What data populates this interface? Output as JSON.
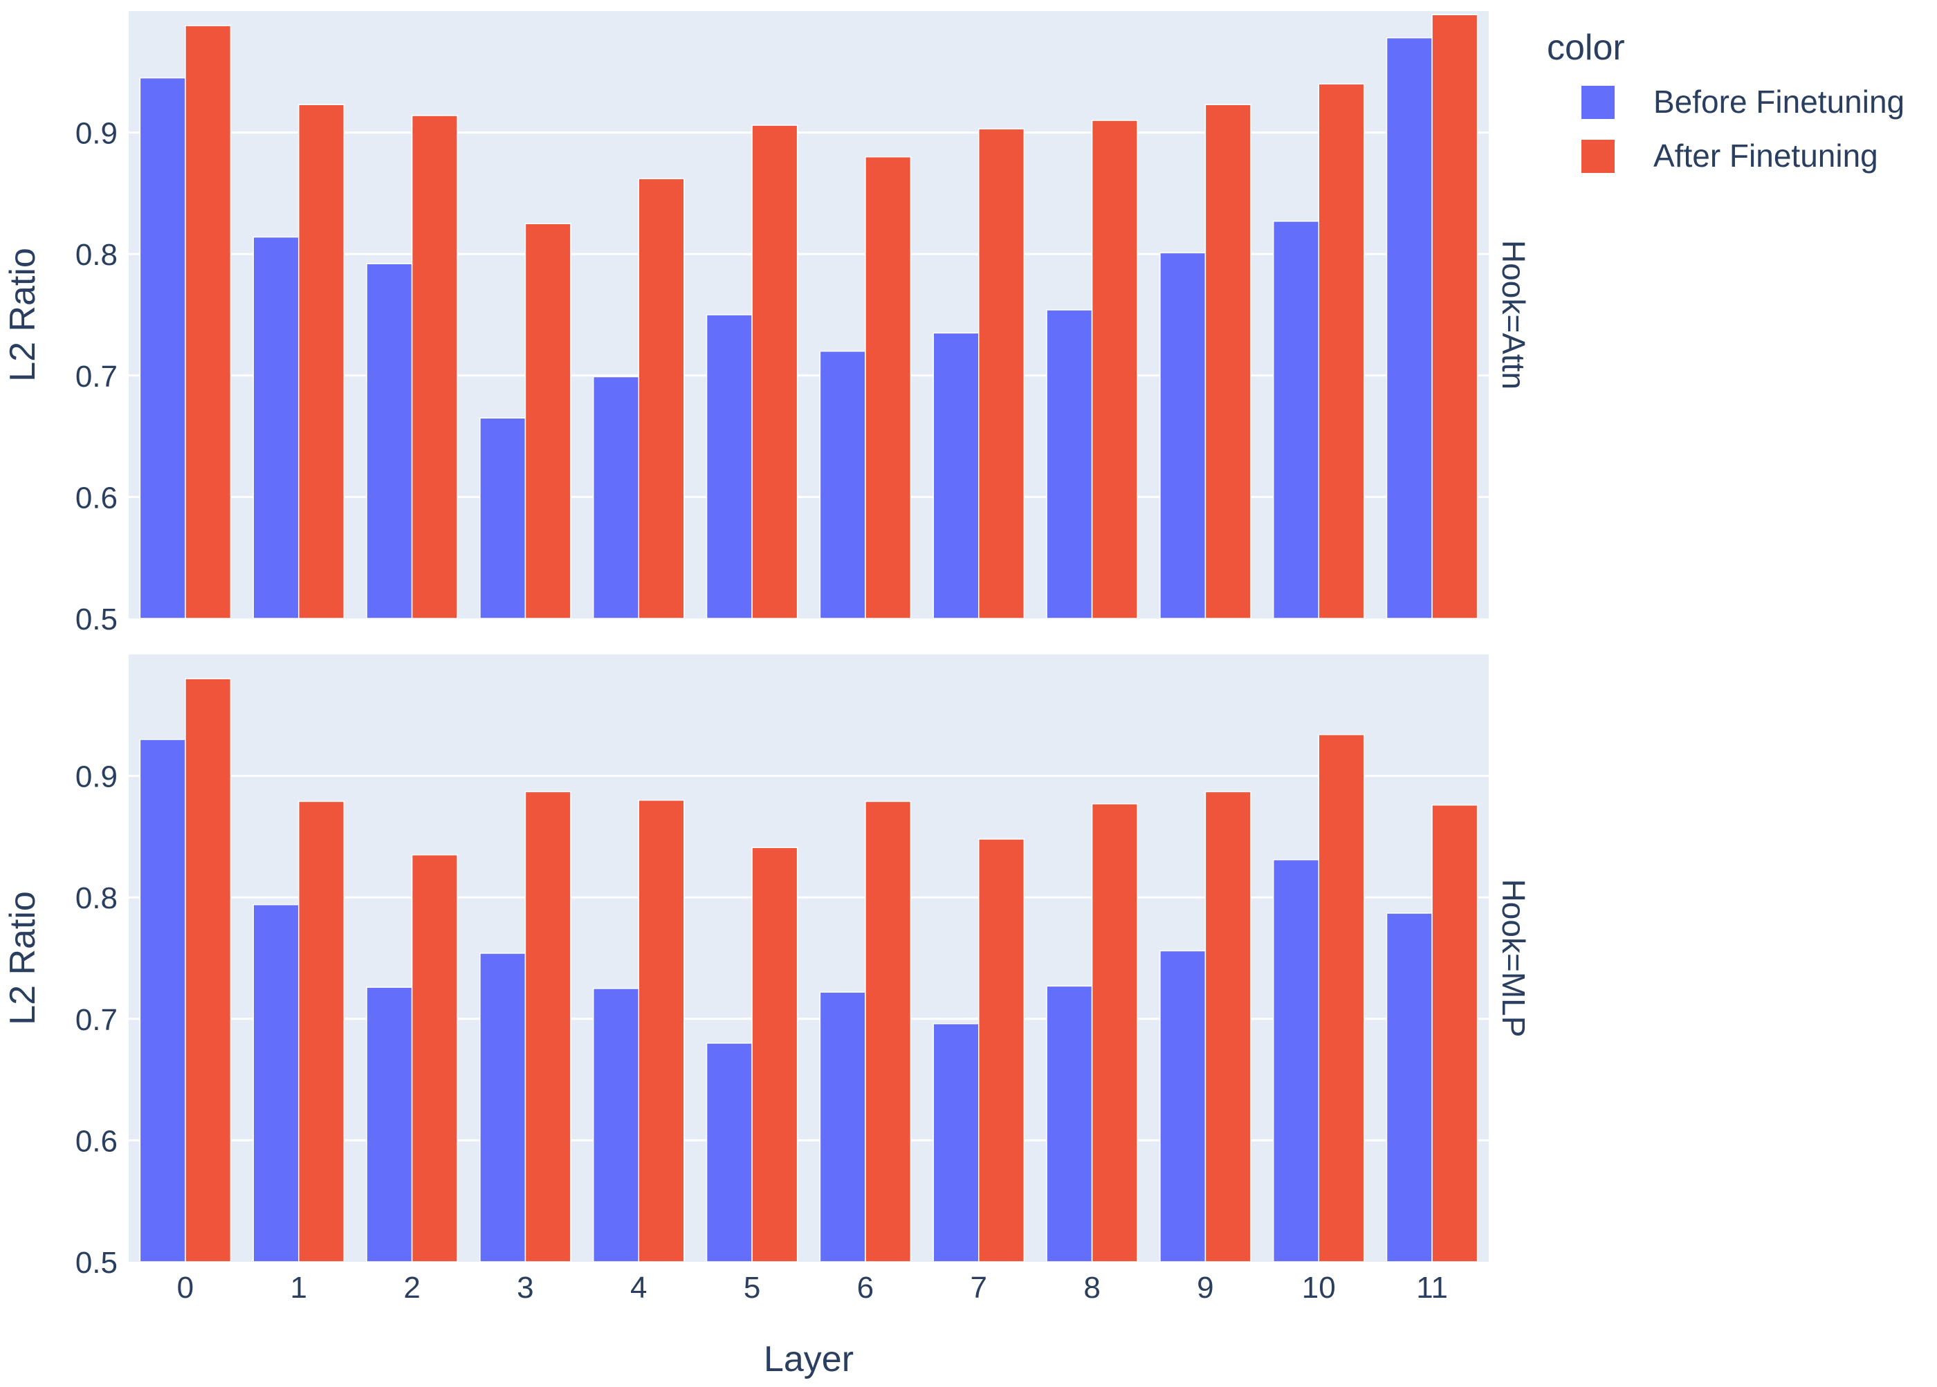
{
  "chart_data": {
    "type": "bar",
    "layout": "faceted-rows",
    "categories": [
      "0",
      "1",
      "2",
      "3",
      "4",
      "5",
      "6",
      "7",
      "8",
      "9",
      "10",
      "11"
    ],
    "xlabel": "Layer",
    "ylabel": "L2 Ratio",
    "ylim": [
      0.5,
      1.0
    ],
    "yticks": [
      "0.5",
      "0.6",
      "0.7",
      "0.8",
      "0.9"
    ],
    "grid": true,
    "legend": {
      "title": "color",
      "placement": "top-right",
      "entries": [
        {
          "name": "Before Finetuning",
          "color": "#636efa"
        },
        {
          "name": "After Finetuning",
          "color": "#ef553b"
        }
      ]
    },
    "facets": [
      {
        "label": "Hook=Attn",
        "series": [
          {
            "name": "Before Finetuning",
            "values": [
              0.945,
              0.814,
              0.792,
              0.665,
              0.699,
              0.75,
              0.72,
              0.735,
              0.754,
              0.801,
              0.827,
              0.978
            ]
          },
          {
            "name": "After Finetuning",
            "values": [
              0.988,
              0.923,
              0.914,
              0.825,
              0.862,
              0.906,
              0.88,
              0.903,
              0.91,
              0.923,
              0.94,
              0.997
            ]
          }
        ]
      },
      {
        "label": "Hook=MLP",
        "series": [
          {
            "name": "Before Finetuning",
            "values": [
              0.93,
              0.794,
              0.726,
              0.754,
              0.725,
              0.68,
              0.722,
              0.696,
              0.727,
              0.756,
              0.831,
              0.787
            ]
          },
          {
            "name": "After Finetuning",
            "values": [
              0.98,
              0.879,
              0.835,
              0.887,
              0.88,
              0.841,
              0.879,
              0.848,
              0.877,
              0.887,
              0.934,
              0.876
            ]
          }
        ]
      }
    ]
  }
}
